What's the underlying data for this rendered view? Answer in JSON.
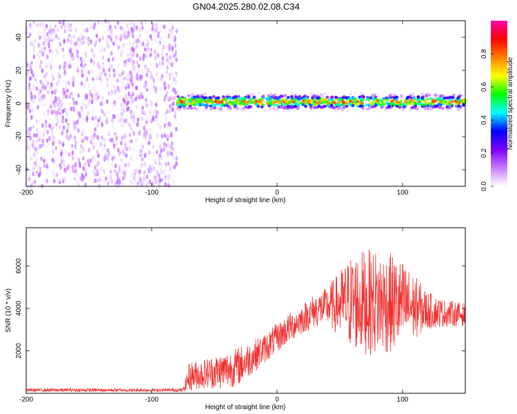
{
  "figure": {
    "title": "GN04.2025.280.02.08.C34"
  },
  "chart_data": [
    {
      "type": "heatmap",
      "title": "GN04.2025.280.02.08.C34",
      "xlabel": "Height of straight line (km)",
      "ylabel": "Frequency (Hz)",
      "xlim": [
        -200,
        150
      ],
      "ylim": [
        -50,
        50
      ],
      "xticks": [
        "-200",
        "-100",
        "0",
        "100"
      ],
      "xtick_values": [
        -200,
        -100,
        0,
        100
      ],
      "yticks": [
        "-40",
        "-20",
        "0",
        "20",
        "40"
      ],
      "ytick_values": [
        -40,
        -20,
        0,
        20,
        40
      ],
      "colorbar": {
        "label": "Normalized spectral amplitude",
        "range": [
          0,
          1
        ],
        "ticks": [
          "0.0",
          "0.2",
          "0.4",
          "0.6",
          "0.8"
        ],
        "tick_values": [
          0,
          0.2,
          0.4,
          0.6,
          0.8
        ],
        "colormap": [
          "#ffffff",
          "#c77dff",
          "#7b00ff",
          "#0000ff",
          "#00ffff",
          "#00ff00",
          "#ffff00",
          "#ff8000",
          "#ff0000",
          "#ff00aa"
        ]
      },
      "regions": [
        {
          "x_range": [
            -200,
            -80
          ],
          "freq_range": [
            -50,
            50
          ],
          "amplitude_range": [
            0.0,
            0.15
          ],
          "description": "Noise"
        },
        {
          "x_range": [
            -80,
            150
          ],
          "freq_center": 1,
          "freq_halfwidth": 4,
          "amplitude_peak": 0.9
        }
      ]
    },
    {
      "type": "line",
      "xlabel": "Height of straight line (km)",
      "ylabel": "SNR (10 * v/v)",
      "xlim": [
        -200,
        150
      ],
      "ylim": [
        0,
        7800
      ],
      "xticks": [
        "-200",
        "-100",
        "0",
        "100"
      ],
      "xtick_values": [
        -200,
        -100,
        0,
        100
      ],
      "yticks": [
        "2000",
        "4000",
        "6000"
      ],
      "ytick_values": [
        2000,
        4000,
        6000
      ],
      "series": [
        {
          "name": "SNR",
          "color": "#f03030",
          "envelope_x": [
            -200,
            -75,
            -70,
            -60,
            -50,
            -40,
            -30,
            -20,
            -10,
            0,
            10,
            20,
            30,
            40,
            50,
            60,
            70,
            80,
            90,
            100,
            110,
            120,
            130,
            140,
            150
          ],
          "envelope_mean": [
            150,
            150,
            800,
            900,
            1000,
            1100,
            1300,
            1700,
            2100,
            2600,
            3100,
            3500,
            3900,
            4100,
            4200,
            4300,
            4300,
            4300,
            4250,
            4150,
            4050,
            3900,
            3800,
            3750,
            3700
          ],
          "envelope_spread": [
            80,
            80,
            700,
            700,
            800,
            900,
            900,
            800,
            700,
            700,
            700,
            700,
            800,
            900,
            1600,
            2300,
            2500,
            2500,
            2400,
            2100,
            1500,
            900,
            700,
            600,
            550
          ]
        }
      ]
    }
  ]
}
